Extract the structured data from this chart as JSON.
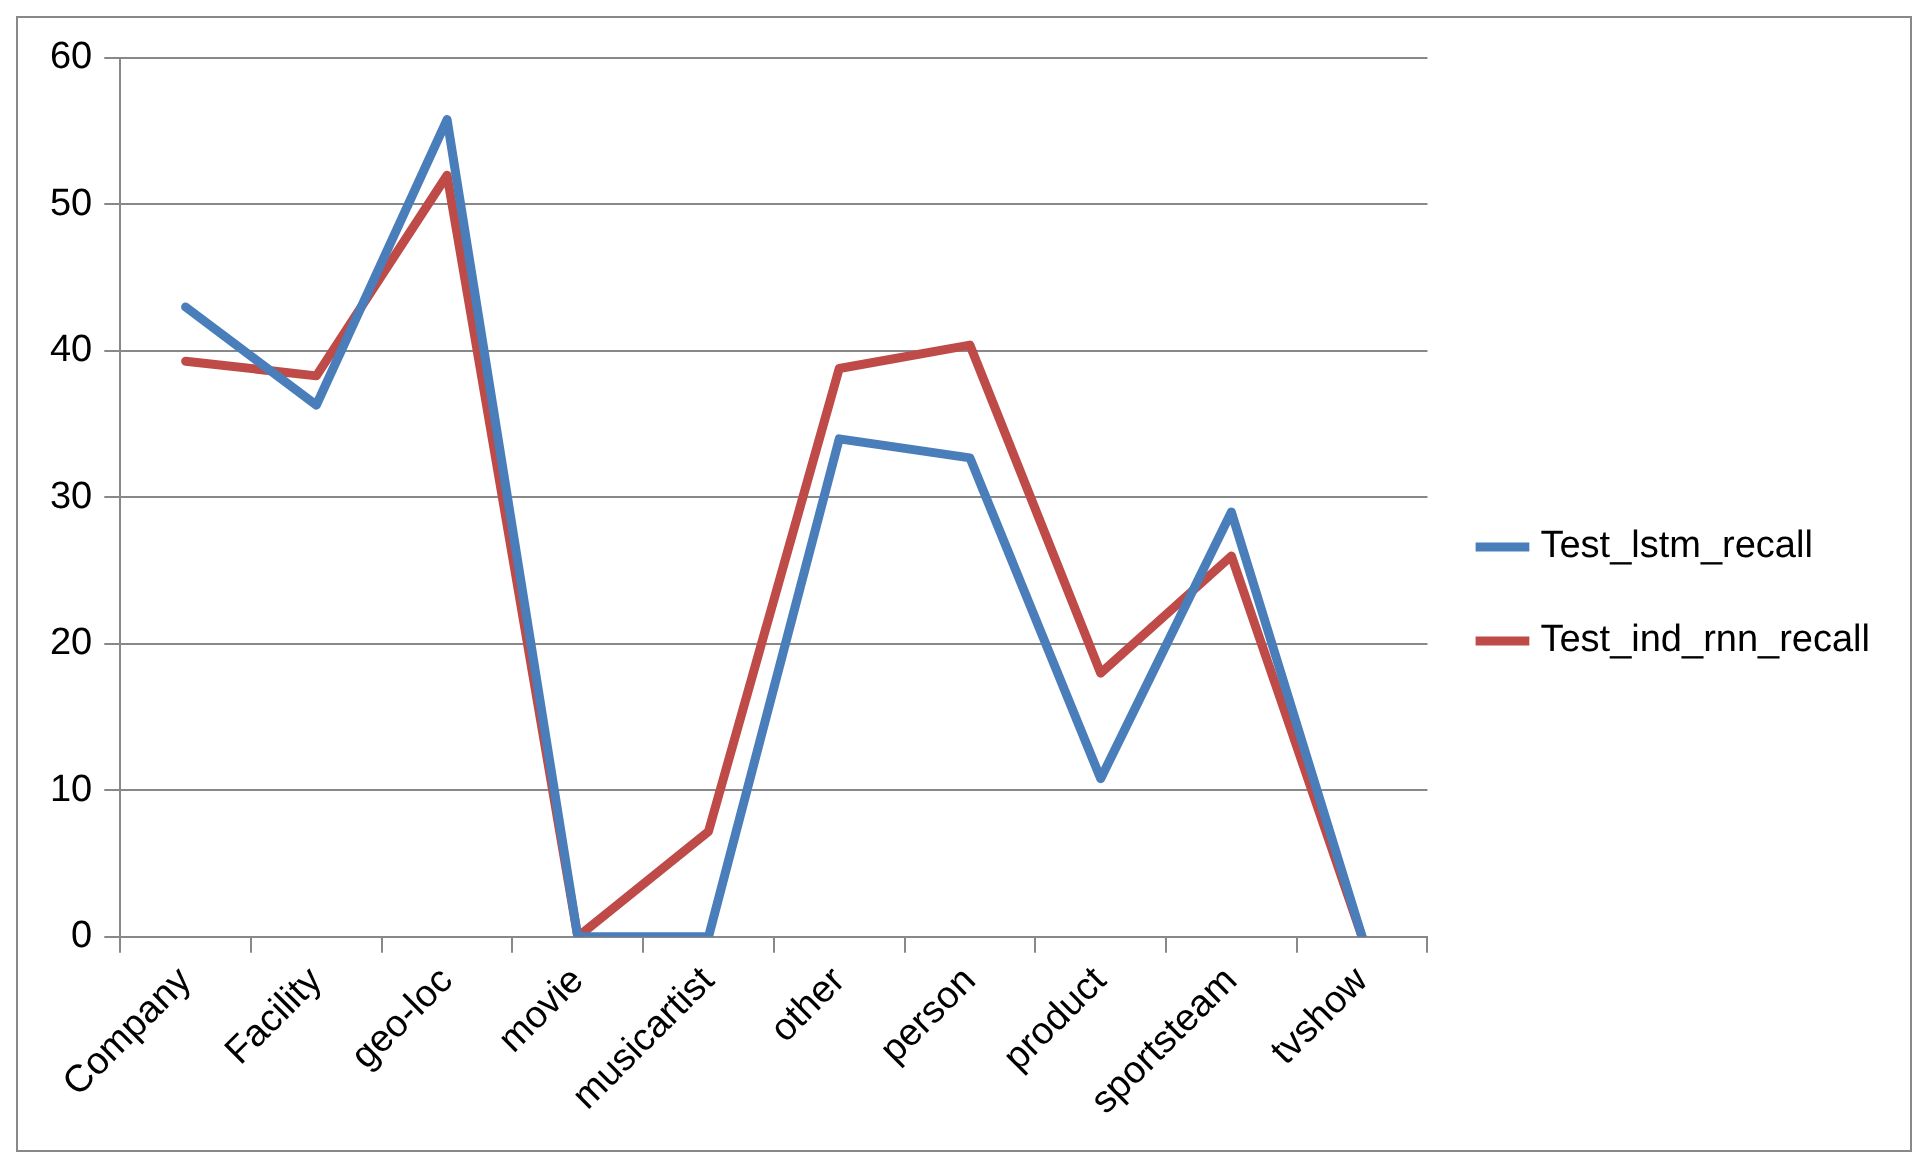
{
  "chart_data": {
    "type": "line",
    "categories": [
      "Company",
      "Facility",
      "geo-loc",
      "movie",
      "musicartist",
      "other",
      "person",
      "product",
      "sportsteam",
      "tvshow"
    ],
    "series": [
      {
        "name": "Test_lstm_recall",
        "color": "#4a7ebb",
        "values": [
          43,
          36.3,
          55.8,
          0,
          0,
          34,
          32.7,
          10.8,
          29,
          0
        ]
      },
      {
        "name": "Test_ind_rnn_recall",
        "color": "#be4b48",
        "values": [
          39.3,
          38.3,
          52,
          0,
          7.2,
          38.8,
          40.4,
          18,
          26,
          0
        ]
      }
    ],
    "ylim": [
      0,
      60
    ],
    "yticks": [
      0,
      10,
      20,
      30,
      40,
      50,
      60
    ],
    "grid": "y",
    "legend": "right",
    "marker": "none",
    "line_style": "solid"
  }
}
